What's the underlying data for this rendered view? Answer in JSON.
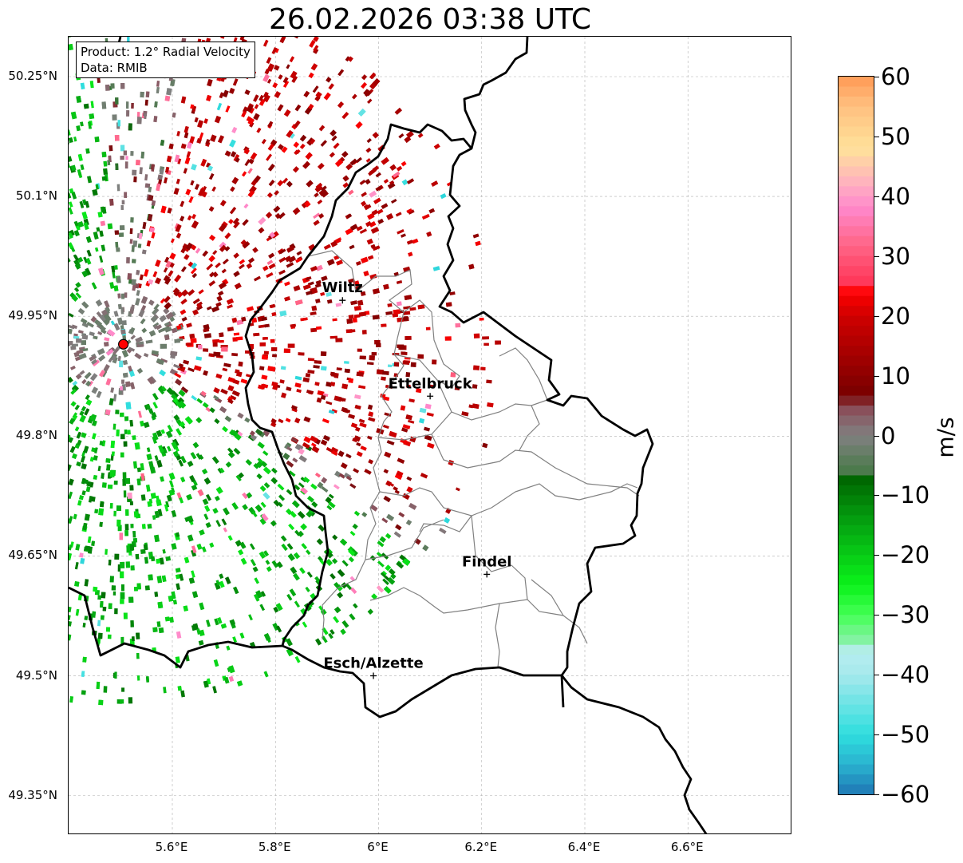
{
  "title": "26.02.2026 03:38 UTC",
  "info_box": {
    "product": "Product: 1.2° Radial Velocity",
    "data": "Data: RMIB"
  },
  "map": {
    "lat_ticks": [
      {
        "label": "50.25°N",
        "value": 50.25
      },
      {
        "label": "50.1°N",
        "value": 50.1
      },
      {
        "label": "49.95°N",
        "value": 49.95
      },
      {
        "label": "49.8°N",
        "value": 49.8
      },
      {
        "label": "49.65°N",
        "value": 49.65
      },
      {
        "label": "49.5°N",
        "value": 49.5
      },
      {
        "label": "49.35°N",
        "value": 49.35
      }
    ],
    "lon_ticks": [
      {
        "label": "5.6°E",
        "value": 5.6
      },
      {
        "label": "5.8°E",
        "value": 5.8
      },
      {
        "label": "6°E",
        "value": 6.0
      },
      {
        "label": "6.2°E",
        "value": 6.2
      },
      {
        "label": "6.4°E",
        "value": 6.4
      },
      {
        "label": "6.6°E",
        "value": 6.6
      }
    ],
    "radar_site": {
      "lon": 5.505,
      "lat": 49.915
    },
    "cities": [
      {
        "name": "Wiltz",
        "lon": 5.93,
        "lat": 49.97
      },
      {
        "name": "Ettelbruck",
        "lon": 6.1,
        "lat": 49.85
      },
      {
        "name": "Findel",
        "lon": 6.21,
        "lat": 49.627
      },
      {
        "name": "Esch/Alzette",
        "lon": 5.99,
        "lat": 49.5
      }
    ]
  },
  "colorbar": {
    "unit": "m/s",
    "min": -60,
    "max": 60,
    "ticks": [
      {
        "label": "60",
        "value": 60
      },
      {
        "label": "50",
        "value": 50
      },
      {
        "label": "40",
        "value": 40
      },
      {
        "label": "30",
        "value": 30
      },
      {
        "label": "20",
        "value": 20
      },
      {
        "label": "10",
        "value": 10
      },
      {
        "label": "0",
        "value": 0
      },
      {
        "label": "−10",
        "value": -10
      },
      {
        "label": "−20",
        "value": -20
      },
      {
        "label": "−30",
        "value": -30
      },
      {
        "label": "−40",
        "value": -40
      },
      {
        "label": "−50",
        "value": -50
      },
      {
        "label": "−60",
        "value": -60
      }
    ],
    "stops": [
      {
        "v": -60,
        "c": "#1f77b4"
      },
      {
        "v": -55,
        "c": "#2ab3d0"
      },
      {
        "v": -50,
        "c": "#2fdede"
      },
      {
        "v": -40,
        "c": "#a6e9ec"
      },
      {
        "v": -36,
        "c": "#b8eef0"
      },
      {
        "v": -35,
        "c": "#8ff0b0"
      },
      {
        "v": -30,
        "c": "#44ff55"
      },
      {
        "v": -25,
        "c": "#0af21a"
      },
      {
        "v": -15,
        "c": "#05a511"
      },
      {
        "v": -7,
        "c": "#006400"
      },
      {
        "v": -6,
        "c": "#4a7a4a"
      },
      {
        "v": 0,
        "c": "#808080"
      },
      {
        "v": 4,
        "c": "#8a5560"
      },
      {
        "v": 7,
        "c": "#7a0000"
      },
      {
        "v": 20,
        "c": "#d00000"
      },
      {
        "v": 24,
        "c": "#ff0000"
      },
      {
        "v": 25,
        "c": "#ff3355"
      },
      {
        "v": 32,
        "c": "#ff6688"
      },
      {
        "v": 38,
        "c": "#ff88cc"
      },
      {
        "v": 42,
        "c": "#ffb0c0"
      },
      {
        "v": 48,
        "c": "#ffe29a"
      },
      {
        "v": 55,
        "c": "#ffc080"
      },
      {
        "v": 60,
        "c": "#ff9955"
      }
    ]
  },
  "colors": {
    "border": "#000000",
    "canton": "#808080",
    "grid": "#b0b0b0",
    "radar_marker": "#ff0000"
  }
}
